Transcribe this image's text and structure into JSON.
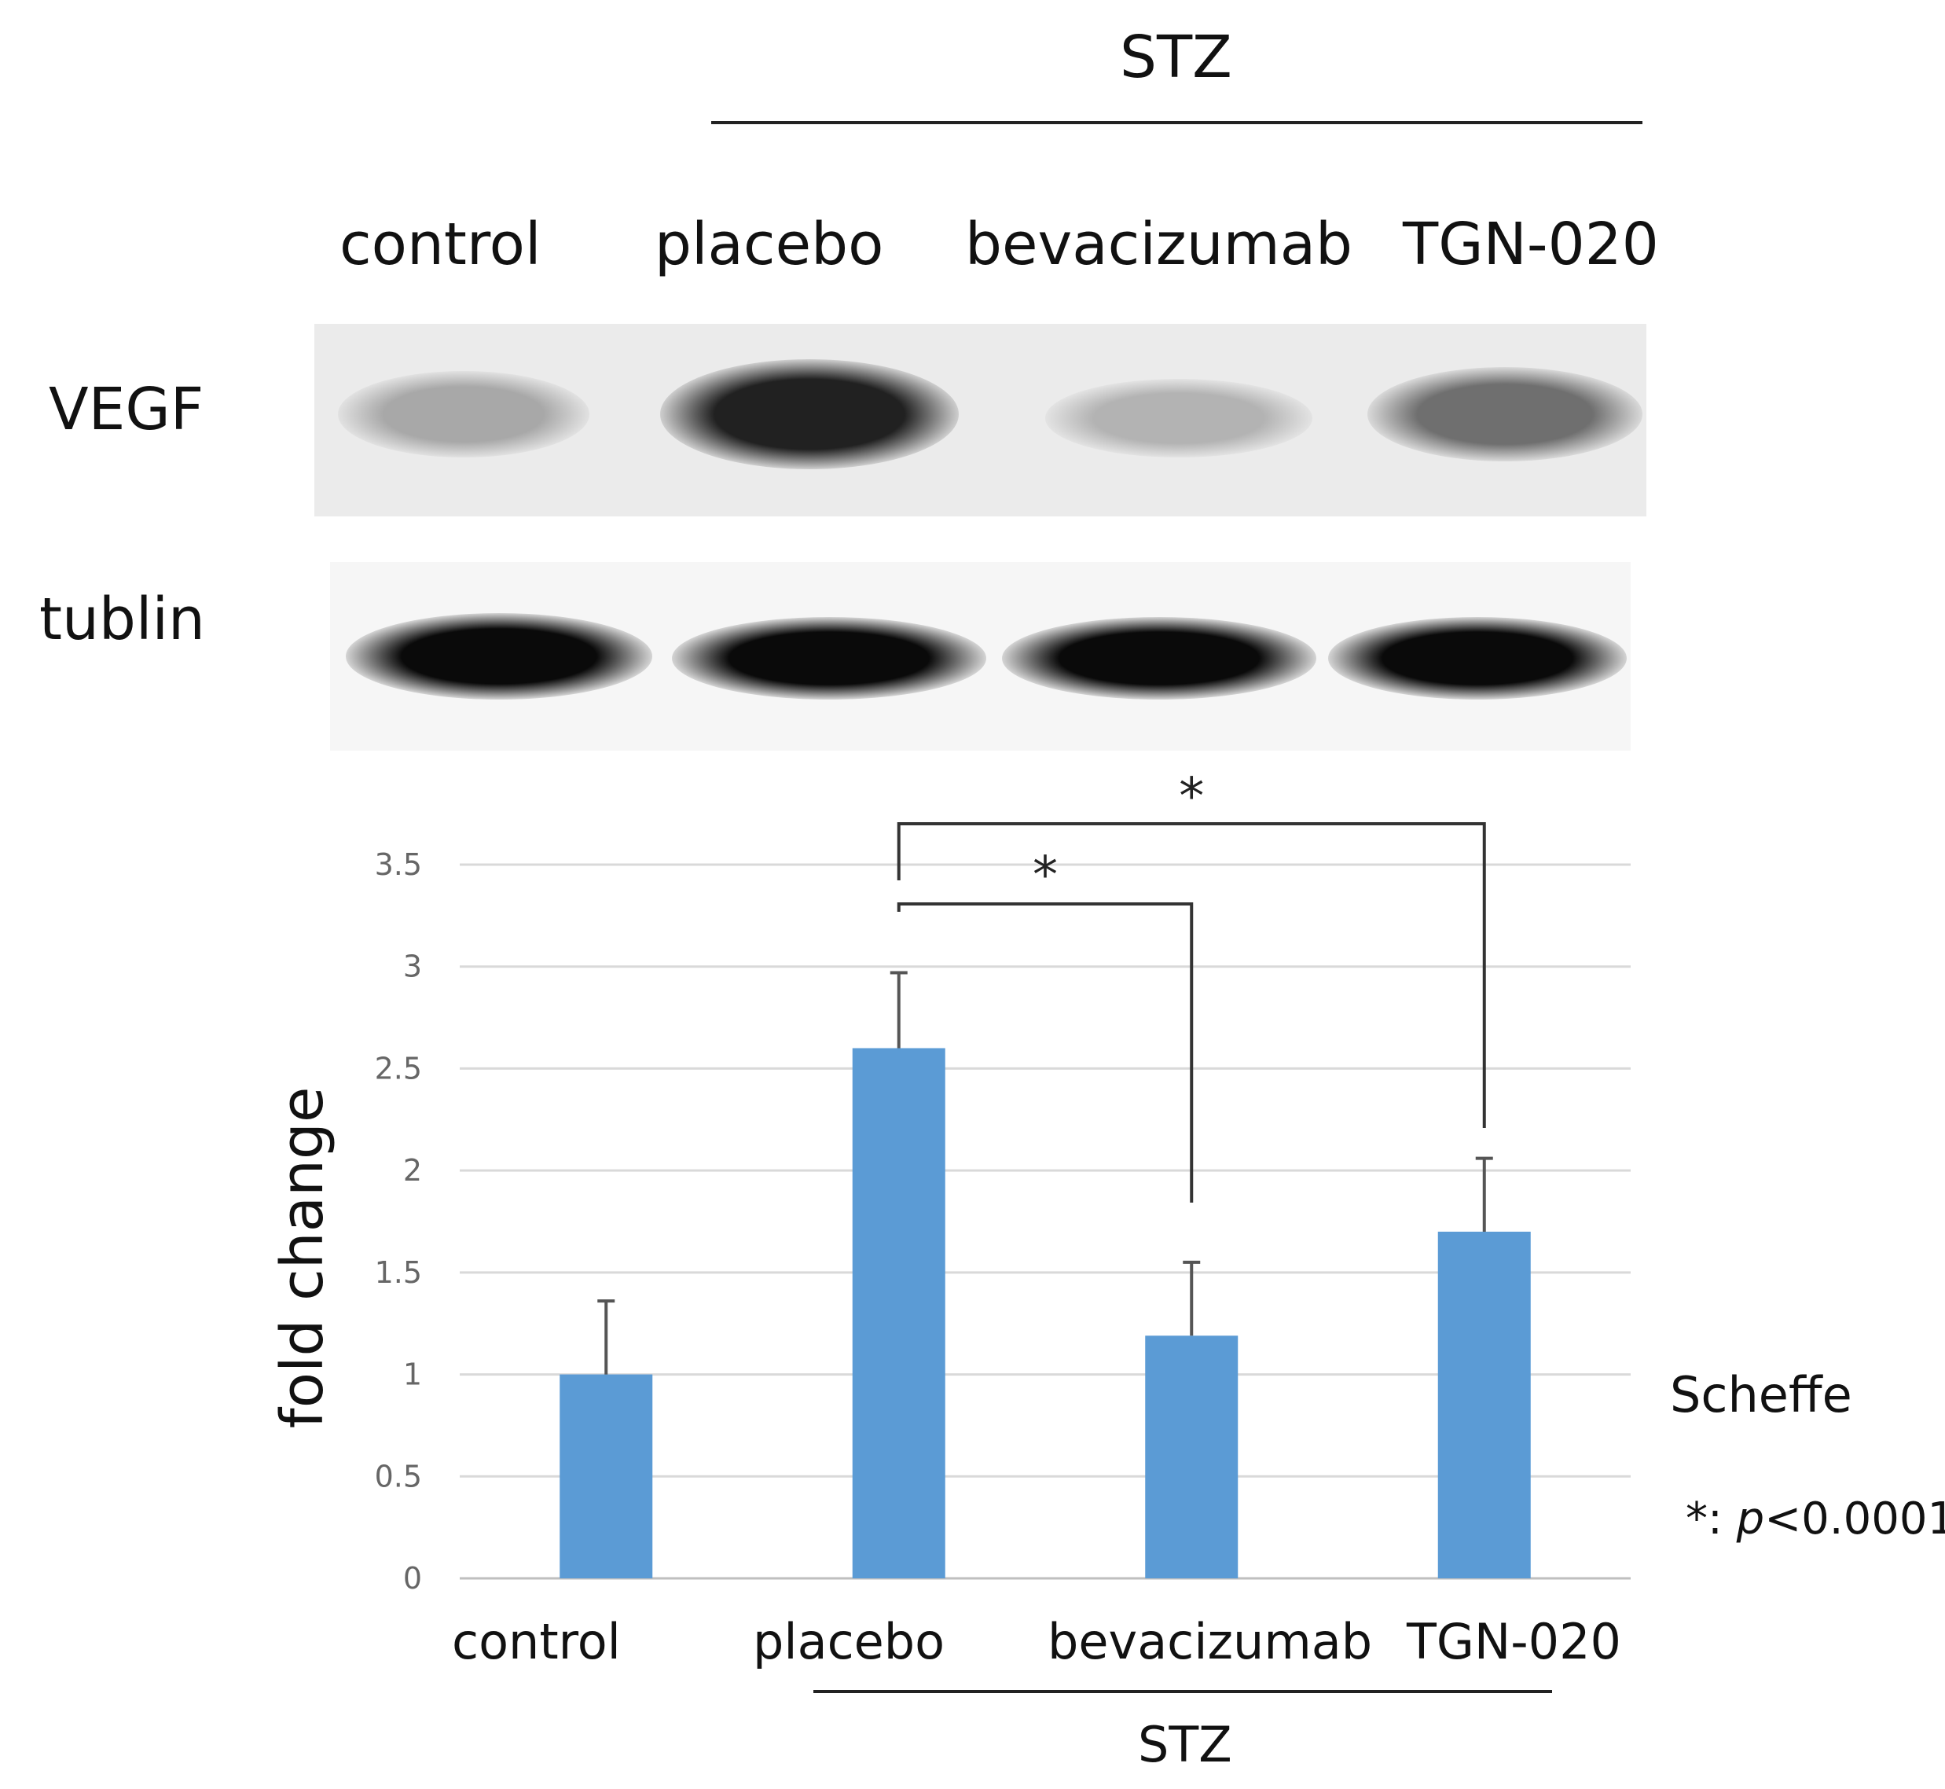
{
  "blot": {
    "group_label_top": "STZ",
    "lane_labels": [
      "control",
      "placebo",
      "bevacizumab",
      "TGN-020"
    ],
    "rows": [
      {
        "label": "VEGF",
        "intensities": [
          0.3,
          0.9,
          0.25,
          0.55
        ]
      },
      {
        "label": "tublin",
        "intensities": [
          1.0,
          1.0,
          1.0,
          1.0
        ]
      }
    ]
  },
  "chart_data": {
    "type": "bar",
    "categories": [
      "control",
      "placebo",
      "bevacizumab",
      "TGN-020"
    ],
    "values": [
      1.0,
      2.6,
      1.19,
      1.7
    ],
    "errors": [
      0.36,
      0.37,
      0.36,
      0.36
    ],
    "ylabel": "fold change",
    "xlabel": "",
    "ylim": [
      0,
      3.5
    ],
    "yticks": [
      0,
      0.5,
      1,
      1.5,
      2,
      2.5,
      3,
      3.5
    ],
    "ytick_labels": [
      "0",
      "0.5",
      "1",
      "1.5",
      "2",
      "2.5",
      "3",
      "3.5"
    ],
    "grid": true,
    "bar_color": "#5b9bd5",
    "group_label_bottom": "STZ",
    "significance": [
      {
        "from": "placebo",
        "to": "bevacizumab",
        "label": "*"
      },
      {
        "from": "placebo",
        "to": "TGN-020",
        "label": "*"
      }
    ],
    "annotations": {
      "test": "Scheffe",
      "p_symbol": "*",
      "p_sep": ": ",
      "p_var": "p",
      "p_value": "<0.0001"
    }
  }
}
